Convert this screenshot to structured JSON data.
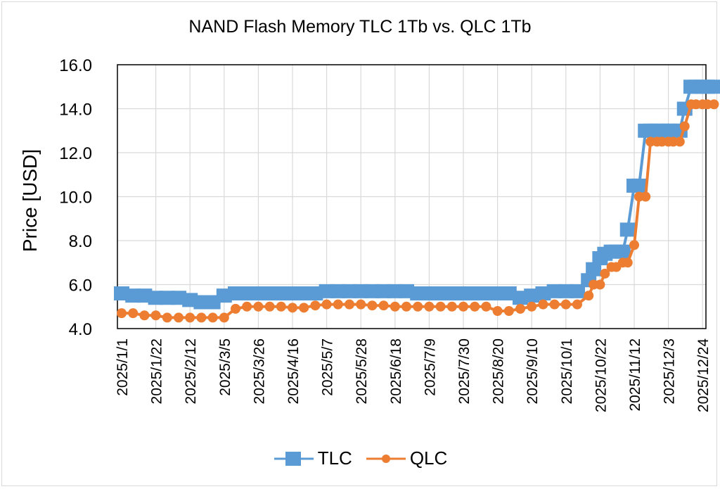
{
  "chart_data": {
    "type": "line",
    "title": "NAND Flash Memory TLC 1Tb vs. QLC 1Tb",
    "xlabel": "",
    "ylabel": "Price [USD]",
    "ylim": [
      4.0,
      16.0
    ],
    "yticks": [
      "4.0",
      "6.0",
      "8.0",
      "10.0",
      "12.0",
      "14.0",
      "16.0"
    ],
    "xticks": [
      "2025/1/1",
      "2025/1/22",
      "2025/2/12",
      "2025/3/5",
      "2025/3/26",
      "2025/4/16",
      "2025/5/7",
      "2025/5/28",
      "2025/6/18",
      "2025/7/9",
      "2025/7/30",
      "2025/8/20",
      "2025/9/10",
      "2025/10/1",
      "2025/10/22",
      "2025/11/12",
      "2025/12/3",
      "2025/12/24"
    ],
    "grid": true,
    "legend_position": "bottom",
    "x_days": [
      0,
      7,
      14,
      21,
      28,
      35,
      42,
      49,
      56,
      63,
      70,
      77,
      84,
      91,
      98,
      105,
      112,
      119,
      126,
      133,
      140,
      147,
      154,
      161,
      168,
      175,
      182,
      189,
      196,
      203,
      210,
      217,
      224,
      231,
      238,
      245,
      252,
      259,
      266,
      273,
      280,
      287,
      290,
      294,
      297,
      301,
      304,
      308,
      311,
      315,
      318,
      322,
      325,
      329,
      332,
      336,
      339,
      343,
      346,
      350,
      353,
      357,
      360,
      364
    ],
    "series": [
      {
        "name": "TLC",
        "color": "#5b9bd5",
        "marker": "square",
        "values": [
          5.6,
          5.5,
          5.5,
          5.4,
          5.4,
          5.4,
          5.3,
          5.2,
          5.2,
          5.5,
          5.6,
          5.6,
          5.6,
          5.6,
          5.6,
          5.6,
          5.6,
          5.6,
          5.7,
          5.7,
          5.7,
          5.7,
          5.7,
          5.7,
          5.7,
          5.7,
          5.6,
          5.6,
          5.6,
          5.6,
          5.6,
          5.6,
          5.6,
          5.6,
          5.6,
          5.4,
          5.5,
          5.6,
          5.7,
          5.7,
          5.7,
          6.2,
          6.7,
          7.2,
          7.4,
          7.5,
          7.5,
          7.5,
          8.5,
          10.5,
          10.5,
          13.0,
          13.0,
          13.0,
          13.0,
          13.0,
          13.0,
          13.0,
          14.0,
          15.0,
          15.0,
          15.0,
          15.0,
          15.0
        ]
      },
      {
        "name": "QLC",
        "color": "#ed7d31",
        "marker": "circle",
        "values": [
          4.7,
          4.7,
          4.6,
          4.6,
          4.5,
          4.5,
          4.5,
          4.5,
          4.5,
          4.5,
          4.9,
          5.0,
          5.0,
          5.0,
          5.0,
          4.95,
          4.95,
          5.05,
          5.1,
          5.1,
          5.1,
          5.1,
          5.05,
          5.05,
          5.0,
          5.0,
          5.0,
          5.0,
          5.0,
          5.0,
          5.0,
          5.0,
          5.0,
          4.8,
          4.8,
          4.9,
          5.0,
          5.1,
          5.1,
          5.1,
          5.1,
          5.5,
          6.0,
          6.0,
          6.5,
          6.8,
          6.8,
          7.0,
          7.0,
          7.8,
          10.0,
          10.0,
          12.5,
          12.5,
          12.5,
          12.5,
          12.5,
          12.5,
          13.2,
          14.2,
          14.2,
          14.2,
          14.2,
          14.2
        ]
      }
    ]
  },
  "legend": {
    "items": [
      {
        "label": "TLC",
        "color": "#5b9bd5"
      },
      {
        "label": "QLC",
        "color": "#ed7d31"
      }
    ]
  }
}
